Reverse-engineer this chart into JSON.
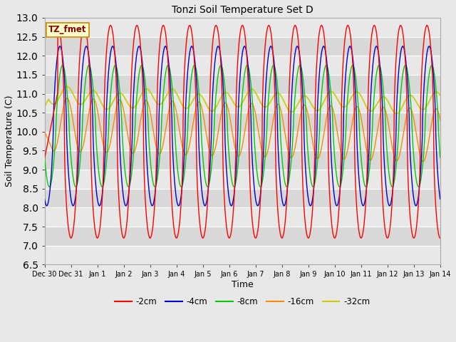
{
  "title": "Tonzi Soil Temperature Set D",
  "xlabel": "Time",
  "ylabel": "Soil Temperature (C)",
  "ylim": [
    6.5,
    13.0
  ],
  "bg_color": "#e8e8e8",
  "plot_bg_color": "#e0e0e0",
  "grid_color": "#ffffff",
  "legend_label": "TZ_fmet",
  "series": {
    "-2cm": {
      "color": "#ff0000",
      "lw": 1.0
    },
    "-4cm": {
      "color": "#0000cc",
      "lw": 1.0
    },
    "-8cm": {
      "color": "#00cc00",
      "lw": 1.0
    },
    "-16cm": {
      "color": "#ff8800",
      "lw": 1.0
    },
    "-32cm": {
      "color": "#cccc00",
      "lw": 1.2
    }
  },
  "xtick_labels": [
    "Dec 30",
    "Dec 31",
    "Jan 1",
    "Jan 2",
    "Jan 3",
    "Jan 4",
    "Jan 5",
    "Jan 6",
    "Jan 7",
    "Jan 8",
    "Jan 9",
    "Jan 10",
    "Jan 11",
    "Jan 12",
    "Jan 13",
    "Jan 14"
  ],
  "xtick_positions": [
    0,
    1,
    2,
    3,
    4,
    5,
    6,
    7,
    8,
    9,
    10,
    11,
    12,
    13,
    14,
    15
  ],
  "ytick_vals": [
    6.5,
    7.0,
    7.5,
    8.0,
    8.5,
    9.0,
    9.5,
    10.0,
    10.5,
    11.0,
    11.5,
    12.0,
    12.5,
    13.0
  ]
}
